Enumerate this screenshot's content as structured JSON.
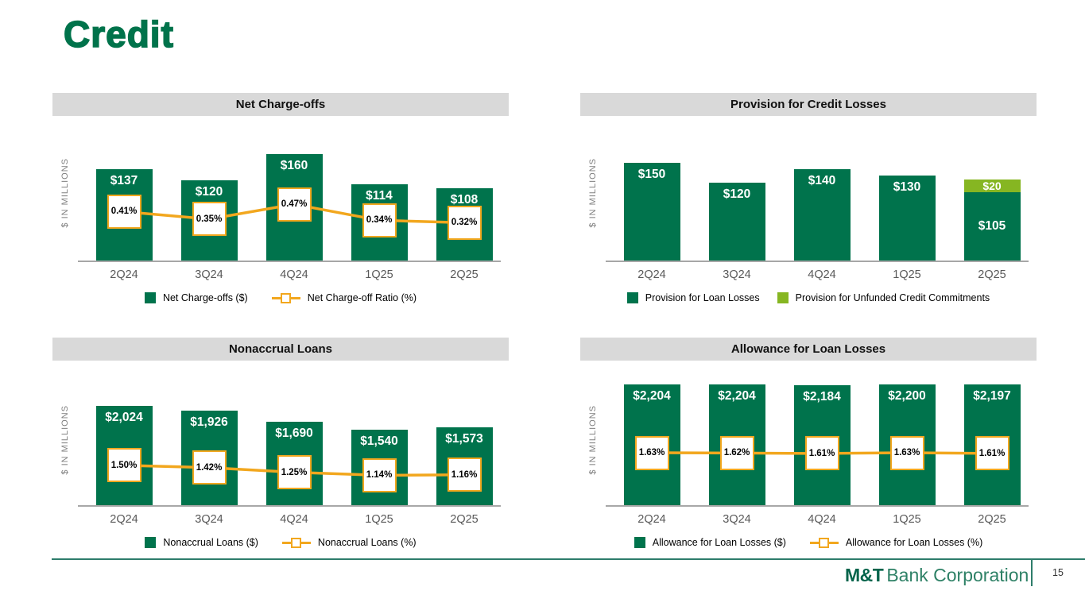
{
  "page": {
    "title": "Credit"
  },
  "footer": {
    "logo_bold": "M&T",
    "logo_rest": "Bank Corporation",
    "page_number": "15"
  },
  "colors": {
    "dark_green": "#00734C",
    "light_green": "#86B622",
    "gold": "#F2A71E",
    "title_green": "#00734B"
  },
  "chart_data": [
    {
      "type": "bar-line",
      "title": "Net Charge-offs",
      "ylabel": "$  IN MILLIONS",
      "categories": [
        "2Q24",
        "3Q24",
        "4Q24",
        "1Q25",
        "2Q25"
      ],
      "bars": {
        "name": "Net Charge-offs ($)",
        "values": [
          137,
          120,
          160,
          114,
          108
        ],
        "labels": [
          "$137",
          "$120",
          "$160",
          "$114",
          "$108"
        ]
      },
      "line": {
        "name": "Net Charge-off Ratio (%)",
        "values": [
          0.41,
          0.35,
          0.47,
          0.34,
          0.32
        ],
        "labels": [
          "0.41%",
          "0.35%",
          "0.47%",
          "0.34%",
          "0.32%"
        ]
      },
      "legend_position": "bottom",
      "grid": false
    },
    {
      "type": "stacked-bar",
      "title": "Provision for Credit Losses",
      "ylabel": "$  IN MILLIONS",
      "categories": [
        "2Q24",
        "3Q24",
        "4Q24",
        "1Q25",
        "2Q25"
      ],
      "series": [
        {
          "name": "Provision for Loan Losses",
          "color": "dark_green",
          "values": [
            150,
            120,
            140,
            130,
            105
          ],
          "labels": [
            "$150",
            "$120",
            "$140",
            "$130",
            "$105"
          ]
        },
        {
          "name": "Provision for Unfunded Credit Commitments",
          "color": "light_green",
          "values": [
            0,
            0,
            0,
            0,
            20
          ],
          "labels": [
            "",
            "",
            "",
            "",
            "$20"
          ]
        }
      ],
      "legend_position": "bottom",
      "grid": false
    },
    {
      "type": "bar-line",
      "title": "Nonaccrual Loans",
      "ylabel": "$  IN MILLIONS",
      "categories": [
        "2Q24",
        "3Q24",
        "4Q24",
        "1Q25",
        "2Q25"
      ],
      "bars": {
        "name": "Nonaccrual Loans ($)",
        "values": [
          2024,
          1926,
          1690,
          1540,
          1573
        ],
        "labels": [
          "$2,024",
          "$1,926",
          "$1,690",
          "$1,540",
          "$1,573"
        ]
      },
      "line": {
        "name": "Nonaccrual Loans (%)",
        "values": [
          1.5,
          1.42,
          1.25,
          1.14,
          1.16
        ],
        "labels": [
          "1.50%",
          "1.42%",
          "1.25%",
          "1.14%",
          "1.16%"
        ]
      },
      "legend_position": "bottom",
      "grid": false
    },
    {
      "type": "bar-line",
      "title": "Allowance for Loan Losses",
      "ylabel": "$ IN MILLIONS",
      "categories": [
        "2Q24",
        "3Q24",
        "4Q24",
        "1Q25",
        "2Q25"
      ],
      "bars": {
        "name": "Allowance for Loan Losses ($)",
        "values": [
          2204,
          2204,
          2184,
          2200,
          2197
        ],
        "labels": [
          "$2,204",
          "$2,204",
          "$2,184",
          "$2,200",
          "$2,197"
        ]
      },
      "line": {
        "name": "Allowance for Loan Losses (%)",
        "values": [
          1.63,
          1.62,
          1.61,
          1.63,
          1.61
        ],
        "labels": [
          "1.63%",
          "1.62%",
          "1.61%",
          "1.63%",
          "1.61%"
        ]
      },
      "legend_position": "bottom",
      "grid": false
    }
  ]
}
